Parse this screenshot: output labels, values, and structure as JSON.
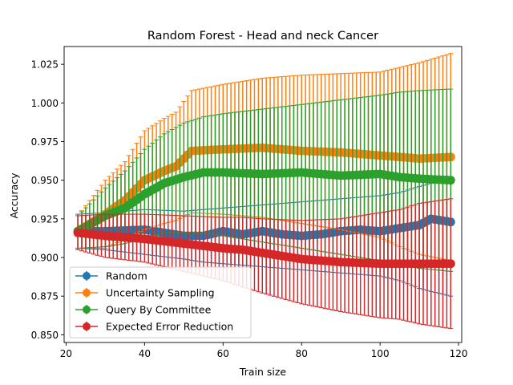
{
  "chart_data": {
    "type": "line",
    "title": "Random Forest - Head and neck Cancer",
    "xlabel": "Train size",
    "ylabel": "Accuracy",
    "xlim": [
      19.5,
      120.8
    ],
    "ylim": [
      0.845,
      1.0365
    ],
    "xticks": [
      20,
      40,
      60,
      80,
      100,
      120
    ],
    "yticks": [
      0.85,
      0.875,
      0.9,
      0.925,
      0.95,
      0.975,
      1.0,
      1.025
    ],
    "ytick_labels": [
      "0.850",
      "0.875",
      "0.900",
      "0.925",
      "0.950",
      "0.975",
      "1.000",
      "1.025"
    ],
    "grid": false,
    "legend_position": "lower-left",
    "x": {
      "start": 23,
      "end": 118,
      "step": 1
    },
    "series": [
      {
        "name": "Random",
        "color": "#1f77b4",
        "knots_x": [
          23,
          30,
          40,
          50,
          55,
          60,
          65,
          70,
          75,
          80,
          85,
          90,
          95,
          100,
          105,
          110,
          113,
          118
        ],
        "knots_mean": [
          0.917,
          0.917,
          0.918,
          0.914,
          0.914,
          0.917,
          0.915,
          0.917,
          0.915,
          0.914,
          0.915,
          0.917,
          0.918,
          0.917,
          0.919,
          0.921,
          0.925,
          0.923
        ],
        "knots_lower": [
          0.906,
          0.905,
          0.902,
          0.899,
          0.897,
          0.896,
          0.895,
          0.894,
          0.893,
          0.892,
          0.891,
          0.89,
          0.889,
          0.888,
          0.885,
          0.88,
          0.878,
          0.875
        ],
        "knots_upper": [
          0.928,
          0.929,
          0.931,
          0.93,
          0.931,
          0.932,
          0.933,
          0.934,
          0.935,
          0.936,
          0.937,
          0.938,
          0.939,
          0.94,
          0.942,
          0.946,
          0.948,
          0.95
        ]
      },
      {
        "name": "Uncertainty Sampling",
        "color": "#ff7f0e",
        "knots_x": [
          23,
          30,
          35,
          40,
          45,
          48,
          52,
          60,
          70,
          80,
          90,
          100,
          105,
          110,
          118
        ],
        "knots_mean": [
          0.917,
          0.928,
          0.937,
          0.95,
          0.956,
          0.959,
          0.969,
          0.97,
          0.971,
          0.969,
          0.968,
          0.966,
          0.965,
          0.964,
          0.965
        ],
        "knots_lower": [
          0.906,
          0.906,
          0.912,
          0.918,
          0.922,
          0.924,
          0.929,
          0.928,
          0.926,
          0.922,
          0.918,
          0.913,
          0.907,
          0.902,
          0.898
        ],
        "knots_upper": [
          0.927,
          0.95,
          0.962,
          0.982,
          0.99,
          0.994,
          1.008,
          1.012,
          1.016,
          1.018,
          1.019,
          1.02,
          1.023,
          1.026,
          1.032
        ]
      },
      {
        "name": "Query By Committee",
        "color": "#2ca02c",
        "knots_x": [
          23,
          30,
          35,
          40,
          45,
          50,
          55,
          60,
          70,
          80,
          90,
          100,
          105,
          110,
          118
        ],
        "knots_mean": [
          0.917,
          0.927,
          0.932,
          0.941,
          0.948,
          0.952,
          0.955,
          0.955,
          0.954,
          0.955,
          0.953,
          0.954,
          0.952,
          0.951,
          0.95
        ],
        "knots_lower": [
          0.906,
          0.907,
          0.909,
          0.913,
          0.916,
          0.916,
          0.916,
          0.914,
          0.91,
          0.906,
          0.902,
          0.898,
          0.896,
          0.893,
          0.891
        ],
        "knots_upper": [
          0.927,
          0.945,
          0.956,
          0.97,
          0.98,
          0.987,
          0.991,
          0.993,
          0.996,
          0.999,
          1.002,
          1.005,
          1.007,
          1.008,
          1.009
        ]
      },
      {
        "name": "Expected Error Reduction",
        "color": "#d62728",
        "knots_x": [
          23,
          30,
          40,
          50,
          60,
          65,
          70,
          80,
          90,
          100,
          105,
          110,
          118
        ],
        "knots_mean": [
          0.916,
          0.914,
          0.912,
          0.909,
          0.906,
          0.905,
          0.903,
          0.899,
          0.897,
          0.896,
          0.896,
          0.896,
          0.896
        ],
        "knots_lower": [
          0.905,
          0.9,
          0.897,
          0.891,
          0.885,
          0.881,
          0.877,
          0.87,
          0.865,
          0.861,
          0.86,
          0.857,
          0.854
        ],
        "knots_upper": [
          0.927,
          0.928,
          0.928,
          0.927,
          0.926,
          0.926,
          0.925,
          0.924,
          0.925,
          0.929,
          0.931,
          0.935,
          0.938
        ]
      }
    ]
  }
}
